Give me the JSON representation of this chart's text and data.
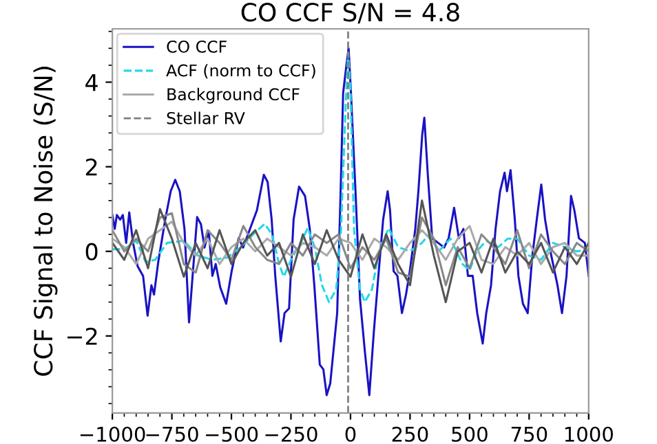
{
  "chart_data": {
    "type": "line",
    "title": "CO CCF S/N = 4.8",
    "ylabel": "CCF Signal to Noise (S/N)",
    "xlim": [
      -1000,
      1000
    ],
    "xticks": [
      {
        "value": -1000,
        "label": "−1000"
      },
      {
        "value": -750,
        "label": "−750"
      },
      {
        "value": -500,
        "label": "−500"
      },
      {
        "value": -250,
        "label": "−250"
      },
      0,
      250,
      500,
      750,
      1000
    ],
    "ylim": [
      -3.82,
      5.26
    ],
    "yticks": [
      {
        "value": -2,
        "label": "−2"
      },
      0,
      2,
      4
    ],
    "grid": false,
    "legend": "top left",
    "marker": "none",
    "series": [
      {
        "name": "CO CCF",
        "color": "#1a12c4",
        "line_style": "solid",
        "x": [
          -1000,
          -990,
          -981,
          -967,
          -956,
          -942,
          -929,
          -913,
          -894,
          -871,
          -852,
          -836,
          -825,
          -807,
          -778,
          -755,
          -736,
          -717,
          -697,
          -678,
          -663,
          -644,
          -628,
          -613,
          -595,
          -580,
          -566,
          -547,
          -522,
          -499,
          -470,
          -451,
          -422,
          -393,
          -364,
          -348,
          -331,
          -316,
          -293,
          -277,
          -258,
          -239,
          -216,
          -191,
          -171,
          -152,
          -129,
          -114,
          -100,
          -85,
          -56,
          -42,
          -31,
          -17,
          -8,
          1,
          21,
          40,
          60,
          79,
          98,
          117,
          137,
          156,
          166,
          181,
          197,
          216,
          233,
          249,
          272,
          285,
          301,
          310,
          324,
          343,
          368,
          393,
          412,
          435,
          455,
          474,
          493,
          513,
          532,
          555,
          570,
          590,
          609,
          628,
          647,
          657,
          672,
          690,
          705,
          724,
          744,
          763,
          782,
          801,
          817,
          840,
          869,
          888,
          907,
          926,
          940,
          959,
          984,
          1000
        ],
        "values": [
          0.86,
          0.53,
          0.86,
          0.75,
          0.86,
          0.2,
          0.92,
          0.2,
          -0.35,
          -0.58,
          -1.52,
          -0.8,
          -1.02,
          -0.24,
          0.75,
          1.42,
          1.69,
          1.42,
          0.53,
          -1.68,
          -0.58,
          0.81,
          0.64,
          0.09,
          0.48,
          -0.58,
          -0.3,
          -0.85,
          -1.24,
          -0.47,
          0.31,
          0.09,
          0.53,
          0.97,
          1.81,
          1.64,
          0.75,
          -0.58,
          -2.13,
          -1.46,
          -1.35,
          0.75,
          1.53,
          1.31,
          0.53,
          -0.8,
          -2.68,
          -2.79,
          -3.4,
          -3.12,
          -1.46,
          1.31,
          3.74,
          4.41,
          4.8,
          3.85,
          1.42,
          -1.13,
          -2.35,
          -3.4,
          -1.9,
          -0.58,
          0.75,
          1.42,
          0.97,
          -0.47,
          -0.58,
          -1.46,
          -1.02,
          -0.47,
          0.53,
          1.42,
          2.75,
          3.16,
          1.86,
          0.31,
          0.2,
          0.09,
          0.31,
          1.03,
          0.31,
          0.53,
          -0.58,
          -0.58,
          -1.46,
          -2.18,
          -1.46,
          -0.8,
          0.53,
          1.42,
          1.86,
          1.42,
          1.92,
          0.75,
          -0.58,
          -1.24,
          -1.46,
          -0.13,
          0.75,
          1.58,
          0.75,
          -0.02,
          -0.8,
          -1.46,
          -0.58,
          1.31,
          0.97,
          0.31,
          0.2,
          -0.58
        ]
      },
      {
        "name": "ACF (norm to CCF)",
        "color": "#22d8e8",
        "line_style": "dashed",
        "x": [
          -1000,
          -950,
          -900,
          -860,
          -820,
          -770,
          -700,
          -640,
          -580,
          -520,
          -460,
          -400,
          -360,
          -330,
          -300,
          -280,
          -250,
          -200,
          -180,
          -150,
          -120,
          -90,
          -60,
          -40,
          -20,
          -10,
          0,
          15,
          40,
          60,
          90,
          120,
          160,
          200,
          250,
          300,
          330,
          370,
          420,
          470,
          500,
          530,
          570,
          620,
          660,
          700,
          750,
          800,
          850,
          900,
          950,
          1000
        ],
        "values": [
          0.05,
          0.05,
          0.25,
          -0.25,
          -0.2,
          0.2,
          0.25,
          -0.1,
          -0.2,
          -0.15,
          0.1,
          0.45,
          0.65,
          0.4,
          -0.3,
          -0.6,
          -0.2,
          0.3,
          0.55,
          0.1,
          -0.8,
          -1.2,
          -0.9,
          0.5,
          3.5,
          4.7,
          3.8,
          0.5,
          -0.9,
          -1.2,
          -0.9,
          0.0,
          0.55,
          0.1,
          0.0,
          0.2,
          0.4,
          0.0,
          0.3,
          -0.3,
          -0.45,
          0.0,
          0.25,
          0.1,
          0.3,
          0.3,
          -0.1,
          -0.2,
          0.2,
          0.1,
          0.0,
          0.05
        ]
      },
      {
        "name": "Background CCF",
        "color": "#aaaaaa",
        "line_style": "solid",
        "x": [
          -1000,
          -950,
          -900,
          -850,
          -800,
          -750,
          -700,
          -650,
          -600,
          -550,
          -500,
          -450,
          -400,
          -350,
          -300,
          -250,
          -200,
          -150,
          -100,
          -50,
          0,
          50,
          100,
          150,
          200,
          250,
          300,
          350,
          400,
          450,
          500,
          550,
          600,
          650,
          700,
          750,
          800,
          850,
          900,
          950,
          1000
        ],
        "values": [
          0.3,
          0.1,
          -0.3,
          0.3,
          0.5,
          0.7,
          0.2,
          -0.1,
          0.3,
          -0.3,
          0.1,
          0.3,
          0.0,
          0.3,
          0.1,
          -0.1,
          0.2,
          0.1,
          -0.1,
          0.3,
          0.2,
          -0.2,
          0.3,
          0.1,
          -0.2,
          0.2,
          0.5,
          0.2,
          -0.2,
          0.3,
          0.6,
          -0.2,
          -0.3,
          0.1,
          -0.1,
          0.2,
          -0.3,
          0.1,
          0.2,
          -0.1,
          -0.1
        ]
      },
      {
        "color": "#888888",
        "line_style": "solid",
        "x": [
          -1000,
          -950,
          -900,
          -850,
          -800,
          -750,
          -700,
          -650,
          -600,
          -550,
          -500,
          -450,
          -400,
          -350,
          -300,
          -250,
          -200,
          -150,
          -100,
          -50,
          0,
          50,
          100,
          150,
          200,
          250,
          300,
          350,
          400,
          450,
          500,
          550,
          600,
          650,
          700,
          750,
          800,
          850,
          900,
          950,
          1000
        ],
        "values": [
          0.5,
          0.0,
          0.3,
          0.0,
          0.8,
          0.9,
          -0.3,
          -0.5,
          0.5,
          0.2,
          -0.2,
          0.6,
          0.1,
          -0.2,
          -0.3,
          0.2,
          -0.1,
          0.4,
          0.2,
          0.4,
          -0.4,
          0.1,
          -0.2,
          0.3,
          -0.5,
          -0.6,
          0.8,
          0.3,
          -0.8,
          0.1,
          -0.4,
          0.4,
          0.1,
          -0.3,
          0.5,
          -0.4,
          0.4,
          0.0,
          -0.3,
          0.2,
          0.0
        ]
      },
      {
        "color": "#555555",
        "line_style": "solid",
        "x": [
          -1000,
          -950,
          -900,
          -850,
          -800,
          -750,
          -700,
          -650,
          -600,
          -550,
          -500,
          -450,
          -400,
          -350,
          -300,
          -250,
          -200,
          -150,
          -100,
          -50,
          0,
          50,
          100,
          150,
          200,
          250,
          300,
          350,
          400,
          450,
          500,
          550,
          600,
          650,
          700,
          750,
          800,
          850,
          900,
          950,
          1000
        ],
        "values": [
          0.2,
          -0.2,
          0.5,
          -0.4,
          1.0,
          0.3,
          -0.6,
          0.2,
          -0.4,
          0.5,
          -0.3,
          0.2,
          0.5,
          -0.1,
          0.2,
          -0.6,
          0.4,
          -0.3,
          0.5,
          -0.2,
          -0.6,
          0.4,
          -0.4,
          0.4,
          -0.3,
          -0.8,
          1.2,
          -0.1,
          -1.2,
          0.0,
          0.2,
          -0.5,
          0.3,
          -0.5,
          0.0,
          -0.3,
          0.2,
          -0.5,
          0.1,
          -0.3,
          0.2
        ]
      },
      {
        "name": "Stellar RV",
        "color": "#808080",
        "line_style": "dashed",
        "x": [
          -10,
          -10
        ],
        "values": [
          -3.82,
          5.26
        ]
      }
    ]
  }
}
